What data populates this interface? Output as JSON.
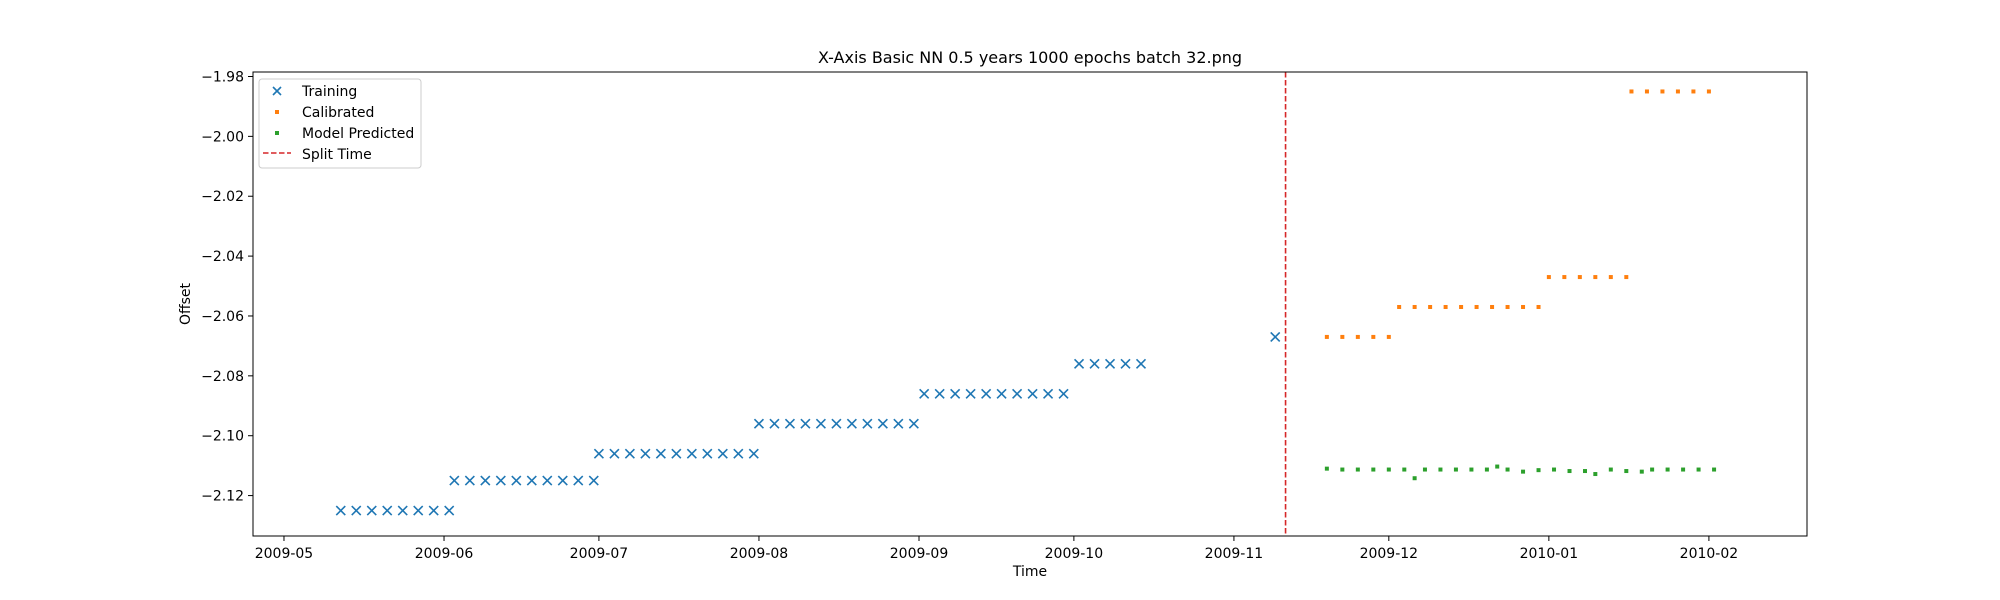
{
  "chart_data": {
    "type": "scatter",
    "title": "X-Axis Basic NN 0.5 years 1000 epochs batch 32.png",
    "xlabel": "Time",
    "ylabel": "Offset",
    "x_type": "date",
    "xlim": [
      "2009-04-25",
      "2010-02-20"
    ],
    "ylim": [
      -2.1335,
      -1.9785
    ],
    "xticks": [
      "2009-05-01",
      "2009-06-01",
      "2009-07-01",
      "2009-08-01",
      "2009-09-01",
      "2009-10-01",
      "2009-11-01",
      "2009-12-01",
      "2010-01-01",
      "2010-02-01"
    ],
    "xtick_labels": [
      "2009-05",
      "2009-06",
      "2009-07",
      "2009-08",
      "2009-09",
      "2009-10",
      "2009-11",
      "2009-12",
      "2010-01",
      "2010-02"
    ],
    "yticks": [
      -2.12,
      -2.1,
      -2.08,
      -2.06,
      -2.04,
      -2.02,
      -2.0,
      -1.98
    ],
    "ytick_labels": [
      "−2.12",
      "−2.10",
      "−2.08",
      "−2.06",
      "−2.04",
      "−2.02",
      "−2.00",
      "−1.98"
    ],
    "grid": false,
    "legend_position": "top-left",
    "split_time": "2009-11-11",
    "series": [
      {
        "name": "Training",
        "marker": "x",
        "color": "#1f77b4",
        "points": [
          [
            "2009-05-12",
            -2.125
          ],
          [
            "2009-05-15",
            -2.125
          ],
          [
            "2009-05-18",
            -2.125
          ],
          [
            "2009-05-21",
            -2.125
          ],
          [
            "2009-05-24",
            -2.125
          ],
          [
            "2009-05-27",
            -2.125
          ],
          [
            "2009-05-30",
            -2.125
          ],
          [
            "2009-06-02",
            -2.125
          ],
          [
            "2009-06-03",
            -2.115
          ],
          [
            "2009-06-06",
            -2.115
          ],
          [
            "2009-06-09",
            -2.115
          ],
          [
            "2009-06-12",
            -2.115
          ],
          [
            "2009-06-15",
            -2.115
          ],
          [
            "2009-06-18",
            -2.115
          ],
          [
            "2009-06-21",
            -2.115
          ],
          [
            "2009-06-24",
            -2.115
          ],
          [
            "2009-06-27",
            -2.115
          ],
          [
            "2009-06-30",
            -2.115
          ],
          [
            "2009-07-01",
            -2.106
          ],
          [
            "2009-07-04",
            -2.106
          ],
          [
            "2009-07-07",
            -2.106
          ],
          [
            "2009-07-10",
            -2.106
          ],
          [
            "2009-07-13",
            -2.106
          ],
          [
            "2009-07-16",
            -2.106
          ],
          [
            "2009-07-19",
            -2.106
          ],
          [
            "2009-07-22",
            -2.106
          ],
          [
            "2009-07-25",
            -2.106
          ],
          [
            "2009-07-28",
            -2.106
          ],
          [
            "2009-07-31",
            -2.106
          ],
          [
            "2009-08-01",
            -2.096
          ],
          [
            "2009-08-04",
            -2.096
          ],
          [
            "2009-08-07",
            -2.096
          ],
          [
            "2009-08-10",
            -2.096
          ],
          [
            "2009-08-13",
            -2.096
          ],
          [
            "2009-08-16",
            -2.096
          ],
          [
            "2009-08-19",
            -2.096
          ],
          [
            "2009-08-22",
            -2.096
          ],
          [
            "2009-08-25",
            -2.096
          ],
          [
            "2009-08-28",
            -2.096
          ],
          [
            "2009-08-31",
            -2.096
          ],
          [
            "2009-09-02",
            -2.086
          ],
          [
            "2009-09-05",
            -2.086
          ],
          [
            "2009-09-08",
            -2.086
          ],
          [
            "2009-09-11",
            -2.086
          ],
          [
            "2009-09-14",
            -2.086
          ],
          [
            "2009-09-17",
            -2.086
          ],
          [
            "2009-09-20",
            -2.086
          ],
          [
            "2009-09-23",
            -2.086
          ],
          [
            "2009-09-26",
            -2.086
          ],
          [
            "2009-09-29",
            -2.086
          ],
          [
            "2009-10-02",
            -2.076
          ],
          [
            "2009-10-05",
            -2.076
          ],
          [
            "2009-10-08",
            -2.076
          ],
          [
            "2009-10-11",
            -2.076
          ],
          [
            "2009-10-14",
            -2.076
          ],
          [
            "2009-11-09",
            -2.067
          ]
        ]
      },
      {
        "name": "Calibrated",
        "marker": "square",
        "color": "#ff7f0e",
        "points": [
          [
            "2009-11-19",
            -2.067
          ],
          [
            "2009-11-22",
            -2.067
          ],
          [
            "2009-11-25",
            -2.067
          ],
          [
            "2009-11-28",
            -2.067
          ],
          [
            "2009-12-01",
            -2.067
          ],
          [
            "2009-12-03",
            -2.057
          ],
          [
            "2009-12-06",
            -2.057
          ],
          [
            "2009-12-09",
            -2.057
          ],
          [
            "2009-12-12",
            -2.057
          ],
          [
            "2009-12-15",
            -2.057
          ],
          [
            "2009-12-18",
            -2.057
          ],
          [
            "2009-12-21",
            -2.057
          ],
          [
            "2009-12-24",
            -2.057
          ],
          [
            "2009-12-27",
            -2.057
          ],
          [
            "2009-12-30",
            -2.057
          ],
          [
            "2010-01-01",
            -2.047
          ],
          [
            "2010-01-04",
            -2.047
          ],
          [
            "2010-01-07",
            -2.047
          ],
          [
            "2010-01-10",
            -2.047
          ],
          [
            "2010-01-13",
            -2.047
          ],
          [
            "2010-01-16",
            -2.047
          ],
          [
            "2010-01-17",
            -1.985
          ],
          [
            "2010-01-20",
            -1.985
          ],
          [
            "2010-01-23",
            -1.985
          ],
          [
            "2010-01-26",
            -1.985
          ],
          [
            "2010-01-29",
            -1.985
          ],
          [
            "2010-02-01",
            -1.985
          ]
        ]
      },
      {
        "name": "Model Predicted",
        "marker": "square",
        "color": "#2ca02c",
        "points": [
          [
            "2009-11-19",
            -2.111
          ],
          [
            "2009-11-22",
            -2.1113
          ],
          [
            "2009-11-25",
            -2.1113
          ],
          [
            "2009-11-28",
            -2.1113
          ],
          [
            "2009-12-01",
            -2.1113
          ],
          [
            "2009-12-04",
            -2.1113
          ],
          [
            "2009-12-06",
            -2.1142
          ],
          [
            "2009-12-08",
            -2.1113
          ],
          [
            "2009-12-11",
            -2.1113
          ],
          [
            "2009-12-14",
            -2.1113
          ],
          [
            "2009-12-17",
            -2.1113
          ],
          [
            "2009-12-20",
            -2.1113
          ],
          [
            "2009-12-22",
            -2.1103
          ],
          [
            "2009-12-24",
            -2.1113
          ],
          [
            "2009-12-27",
            -2.112
          ],
          [
            "2009-12-30",
            -2.1115
          ],
          [
            "2010-01-02",
            -2.1113
          ],
          [
            "2010-01-05",
            -2.1118
          ],
          [
            "2010-01-08",
            -2.1118
          ],
          [
            "2010-01-10",
            -2.1128
          ],
          [
            "2010-01-13",
            -2.1113
          ],
          [
            "2010-01-16",
            -2.1118
          ],
          [
            "2010-01-19",
            -2.112
          ],
          [
            "2010-01-21",
            -2.1113
          ],
          [
            "2010-01-24",
            -2.1113
          ],
          [
            "2010-01-27",
            -2.1113
          ],
          [
            "2010-01-30",
            -2.1113
          ],
          [
            "2010-02-02",
            -2.1113
          ]
        ]
      }
    ],
    "split_line": {
      "name": "Split Time",
      "color": "#d62728",
      "style": "dashed"
    }
  }
}
